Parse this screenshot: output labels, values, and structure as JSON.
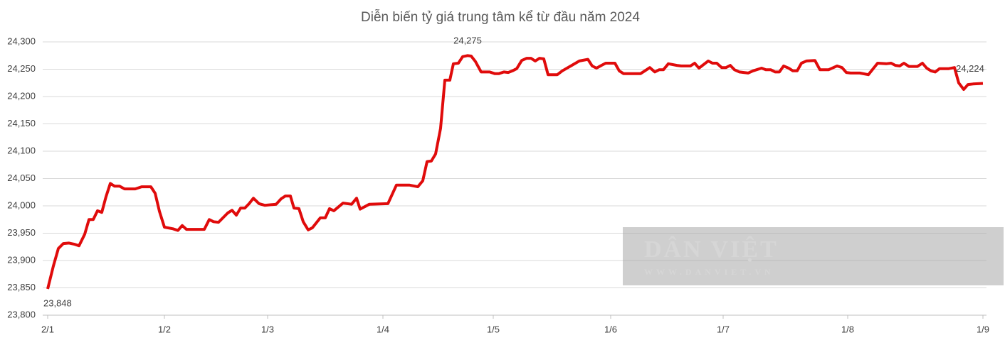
{
  "chart_data": {
    "type": "line",
    "title": "Diễn biến tỷ giá trung tâm kể từ đầu năm 2024",
    "x": [
      0,
      8,
      15,
      22,
      30,
      37,
      44,
      52,
      58,
      64,
      70,
      76,
      82,
      88,
      94,
      101,
      108,
      123,
      132,
      145,
      151,
      157,
      164,
      176,
      183,
      189,
      195,
      220,
      227,
      233,
      240,
      253,
      259,
      265,
      271,
      277,
      283,
      289,
      297,
      305,
      321,
      328,
      334,
      341,
      346,
      353,
      359,
      366,
      372,
      383,
      390,
      396,
      402,
      415,
      427,
      434,
      439,
      452,
      478,
      490,
      508,
      520,
      527,
      533,
      539,
      545,
      552,
      558,
      565,
      570,
      577,
      583,
      590,
      595,
      601,
      609,
      621,
      628,
      634,
      641,
      647,
      653,
      659,
      666,
      673,
      679,
      685,
      691,
      697,
      703,
      716,
      723,
      735,
      747,
      759,
      765,
      771,
      778,
      784,
      797,
      803,
      809,
      833,
      839,
      846,
      853,
      859,
      865,
      872,
      884,
      890,
      903,
      909,
      915,
      928,
      934,
      940,
      947,
      953,
      959,
      965,
      972,
      984,
      991,
      1003,
      1009,
      1016,
      1022,
      1028,
      1034,
      1041,
      1047,
      1053,
      1059,
      1066,
      1078,
      1085,
      1097,
      1109,
      1116,
      1122,
      1128,
      1141,
      1153,
      1166,
      1178,
      1185,
      1191,
      1197,
      1203,
      1210,
      1222,
      1229,
      1235,
      1241,
      1247,
      1253,
      1266,
      1274,
      1280,
      1287,
      1293,
      1300,
      1314
    ],
    "values": [
      23848,
      23890,
      23922,
      23931,
      23932,
      23930,
      23927,
      23948,
      23975,
      23975,
      23991,
      23988,
      24017,
      24041,
      24036,
      24036,
      24031,
      24031,
      24035,
      24035,
      24023,
      23990,
      23961,
      23958,
      23955,
      23964,
      23957,
      23957,
      23975,
      23971,
      23970,
      23987,
      23992,
      23983,
      23996,
      23996,
      24004,
      24014,
      24004,
      24001,
      24003,
      24013,
      24018,
      24018,
      23996,
      23995,
      23971,
      23956,
      23960,
      23978,
      23978,
      23995,
      23991,
      24005,
      24003,
      24014,
      23994,
      24003,
      24004,
      24038,
      24038,
      24035,
      24046,
      24081,
      24082,
      24095,
      24142,
      24230,
      24230,
      24260,
      24261,
      24273,
      24275,
      24274,
      24264,
      24245,
      24245,
      24242,
      24242,
      24245,
      24244,
      24247,
      24251,
      24266,
      24270,
      24270,
      24265,
      24270,
      24269,
      24240,
      24240,
      24247,
      24256,
      24265,
      24268,
      24256,
      24252,
      24257,
      24261,
      24261,
      24247,
      24242,
      24242,
      24247,
      24253,
      24245,
      24249,
      24249,
      24260,
      24257,
      24256,
      24256,
      24261,
      24252,
      24265,
      24261,
      24261,
      24253,
      24253,
      24257,
      24249,
      24245,
      24243,
      24247,
      24252,
      24249,
      24249,
      24245,
      24245,
      24256,
      24252,
      24247,
      24247,
      24261,
      24265,
      24266,
      24249,
      24249,
      24256,
      24253,
      24244,
      24243,
      24243,
      24240,
      24261,
      24260,
      24261,
      24257,
      24256,
      24261,
      24255,
      24255,
      24261,
      24252,
      24247,
      24245,
      24251,
      24251,
      24253,
      24225,
      24213,
      24222,
      24223,
      24224
    ],
    "value_labels": [
      "23,848",
      null,
      null,
      null,
      null,
      null,
      null,
      null,
      null,
      null,
      null,
      null,
      null,
      null,
      null,
      null,
      null,
      null,
      null,
      null,
      null,
      null,
      null,
      null,
      null,
      null,
      null,
      null,
      null,
      null,
      null,
      null,
      null,
      null,
      null,
      null,
      null,
      null,
      null,
      null,
      null,
      null,
      null,
      null,
      null,
      null,
      null,
      null,
      null,
      null,
      null,
      null,
      null,
      null,
      null,
      null,
      null,
      null,
      null,
      null,
      null,
      null,
      null,
      null,
      null,
      null,
      null,
      null,
      null,
      null,
      null,
      null,
      "24,275",
      null,
      null,
      null,
      null,
      null,
      null,
      null,
      null,
      null,
      null,
      null,
      null,
      null,
      null,
      null,
      null,
      null,
      null,
      null,
      null,
      null,
      null,
      null,
      null,
      null,
      null,
      null,
      null,
      null,
      null,
      null,
      null,
      null,
      null,
      null,
      null,
      null,
      null,
      null,
      null,
      null,
      null,
      null,
      null,
      null,
      null,
      null,
      null,
      null,
      null,
      null,
      null,
      null,
      null,
      null,
      null,
      null,
      null,
      null,
      null,
      null,
      null,
      null,
      null,
      null,
      null,
      null,
      null,
      null,
      null,
      null,
      null,
      null,
      null,
      null,
      null,
      null,
      null,
      null,
      null,
      null,
      null,
      null,
      null,
      null,
      null,
      null,
      null,
      null,
      null,
      "24,224"
    ],
    "color": "#e00b0b",
    "xlim": [
      0,
      1314
    ],
    "xticks": [
      {
        "value": 0,
        "label": "2/1"
      },
      {
        "value": 164,
        "label": "1/2"
      },
      {
        "value": 309,
        "label": "1/3"
      },
      {
        "value": 471,
        "label": "1/4"
      },
      {
        "value": 626,
        "label": "1/5"
      },
      {
        "value": 791,
        "label": "1/6"
      },
      {
        "value": 949,
        "label": "1/7"
      },
      {
        "value": 1124,
        "label": "1/8"
      },
      {
        "value": 1314,
        "label": "1/9"
      }
    ],
    "ylim": [
      23800,
      24300
    ],
    "yticks": [
      {
        "value": 23800,
        "label": "23,800"
      },
      {
        "value": 23850,
        "label": "23,850"
      },
      {
        "value": 23900,
        "label": "23,900"
      },
      {
        "value": 23950,
        "label": "23,950"
      },
      {
        "value": 24000,
        "label": "24,000"
      },
      {
        "value": 24050,
        "label": "24,050"
      },
      {
        "value": 24100,
        "label": "24,100"
      },
      {
        "value": 24150,
        "label": "24,150"
      },
      {
        "value": 24200,
        "label": "24,200"
      },
      {
        "value": 24250,
        "label": "24,250"
      },
      {
        "value": 24300,
        "label": "24,300"
      }
    ],
    "grid": true
  },
  "watermark": {
    "title": "DÂN VIỆT",
    "url": "WWW.DANVIET.VN"
  }
}
